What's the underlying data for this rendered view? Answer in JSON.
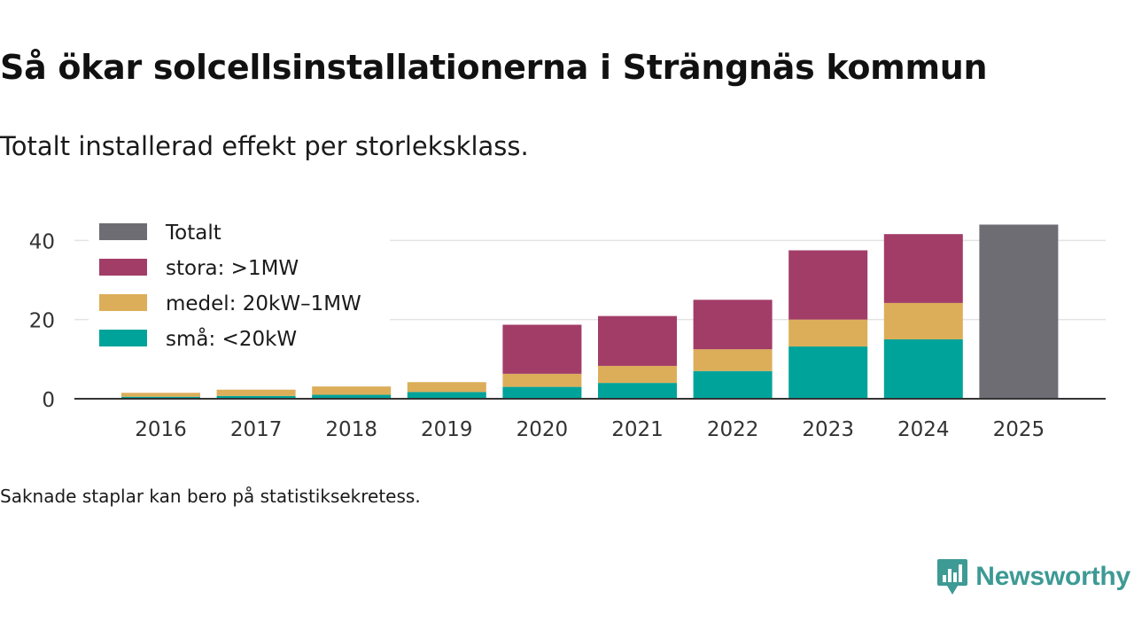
{
  "header": {
    "title": "Så ökar solcellsinstallationerna i Strängnäs kommun",
    "subtitle": "Totalt installerad effekt per storleksklass."
  },
  "footer": {
    "note": "Saknade staplar kan bero på statistiksekretess.",
    "brand": "Newsworthy"
  },
  "chart_data": {
    "type": "bar",
    "stacked": true,
    "title": "Så ökar solcellsinstallationerna i Strängnäs kommun",
    "subtitle": "Totalt installerad effekt per storleksklass.",
    "xlabel": "",
    "ylabel": "",
    "categories": [
      "2016",
      "2017",
      "2018",
      "2019",
      "2020",
      "2021",
      "2022",
      "2023",
      "2024",
      "2025"
    ],
    "ylim": [
      0,
      45
    ],
    "yticks": [
      0,
      20,
      40
    ],
    "grid": true,
    "legend_position": "top-left",
    "series": [
      {
        "name": "små: <20kW",
        "color": "#00a39a",
        "values": [
          0.5,
          0.7,
          1.0,
          1.7,
          3.0,
          4.0,
          7.0,
          13.2,
          15.0,
          null
        ]
      },
      {
        "name": "medel: 20kW–1MW",
        "color": "#dcae5a",
        "values": [
          1.0,
          1.6,
          2.1,
          2.5,
          3.3,
          4.3,
          5.5,
          6.8,
          9.2,
          null
        ]
      },
      {
        "name": "stora: >1MW",
        "color": "#a23d68",
        "values": [
          null,
          null,
          null,
          null,
          12.4,
          12.6,
          12.5,
          17.5,
          17.4,
          null
        ]
      },
      {
        "name": "Totalt",
        "color": "#6e6d74",
        "values": [
          null,
          null,
          null,
          null,
          null,
          null,
          null,
          null,
          null,
          44.0
        ]
      }
    ],
    "legend": [
      {
        "name": "Totalt",
        "color": "#6e6d74"
      },
      {
        "name": "stora: >1MW",
        "color": "#a23d68"
      },
      {
        "name": "medel: 20kW–1MW",
        "color": "#dcae5a"
      },
      {
        "name": "små: <20kW",
        "color": "#00a39a"
      }
    ]
  }
}
